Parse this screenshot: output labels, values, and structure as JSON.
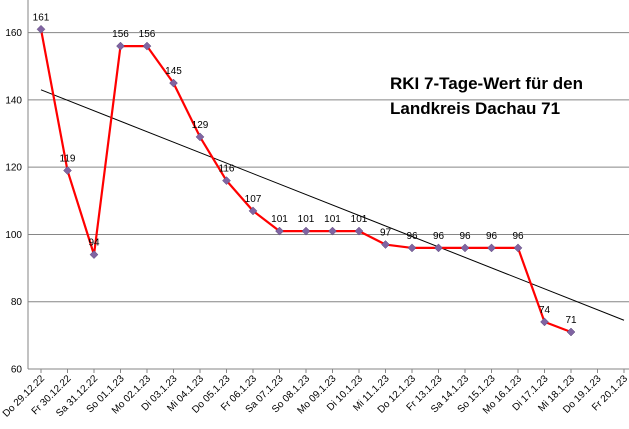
{
  "chart_data": {
    "type": "line",
    "title_lines": [
      "RKI 7-Tage-Wert für den",
      "Landkreis Dachau 71"
    ],
    "xlabel": "",
    "ylabel": "",
    "ylim": [
      60,
      170
    ],
    "yticks": [
      60,
      80,
      100,
      120,
      140,
      160
    ],
    "grid": "horizontal",
    "categories": [
      "Do 29.12.22",
      "Fr 30.12.22",
      "Sa 31.12.22",
      "So 01.1.23",
      "Mo 02.1.23",
      "Di 03.1.23",
      "Mi 04.1.23",
      "Do 05.1.23",
      "Fr 06.1.23",
      "Sa 07.1.23",
      "So 08.1.23",
      "Mo 09.1.23",
      "Di 10.1.23",
      "Mi 11.1.23",
      "Do 12.1.23",
      "Fr 13.1.23",
      "Sa 14.1.23",
      "So 15.1.23",
      "Mo 16.1.23",
      "Di 17.1.23",
      "Mi 18.1.23",
      "Do 19.1.23",
      "Fr 20.1.23"
    ],
    "series": [
      {
        "values": [
          161,
          119,
          94,
          156,
          156,
          145,
          129,
          116,
          107,
          101,
          101,
          101,
          101,
          97,
          96,
          96,
          96,
          96,
          96,
          74,
          71,
          null,
          null
        ],
        "labels": [
          "161",
          "119",
          "94",
          "156",
          "156",
          "145",
          "129",
          "116",
          "107",
          "101",
          "101",
          "101",
          "101",
          "97",
          "96",
          "96",
          "96",
          "96",
          "96",
          "74",
          "71",
          "",
          ""
        ],
        "line_color": "#ff0000",
        "marker_color": "#8064a2"
      }
    ],
    "trendline": {
      "start": 143,
      "end": 74.5,
      "color": "#000000"
    }
  }
}
